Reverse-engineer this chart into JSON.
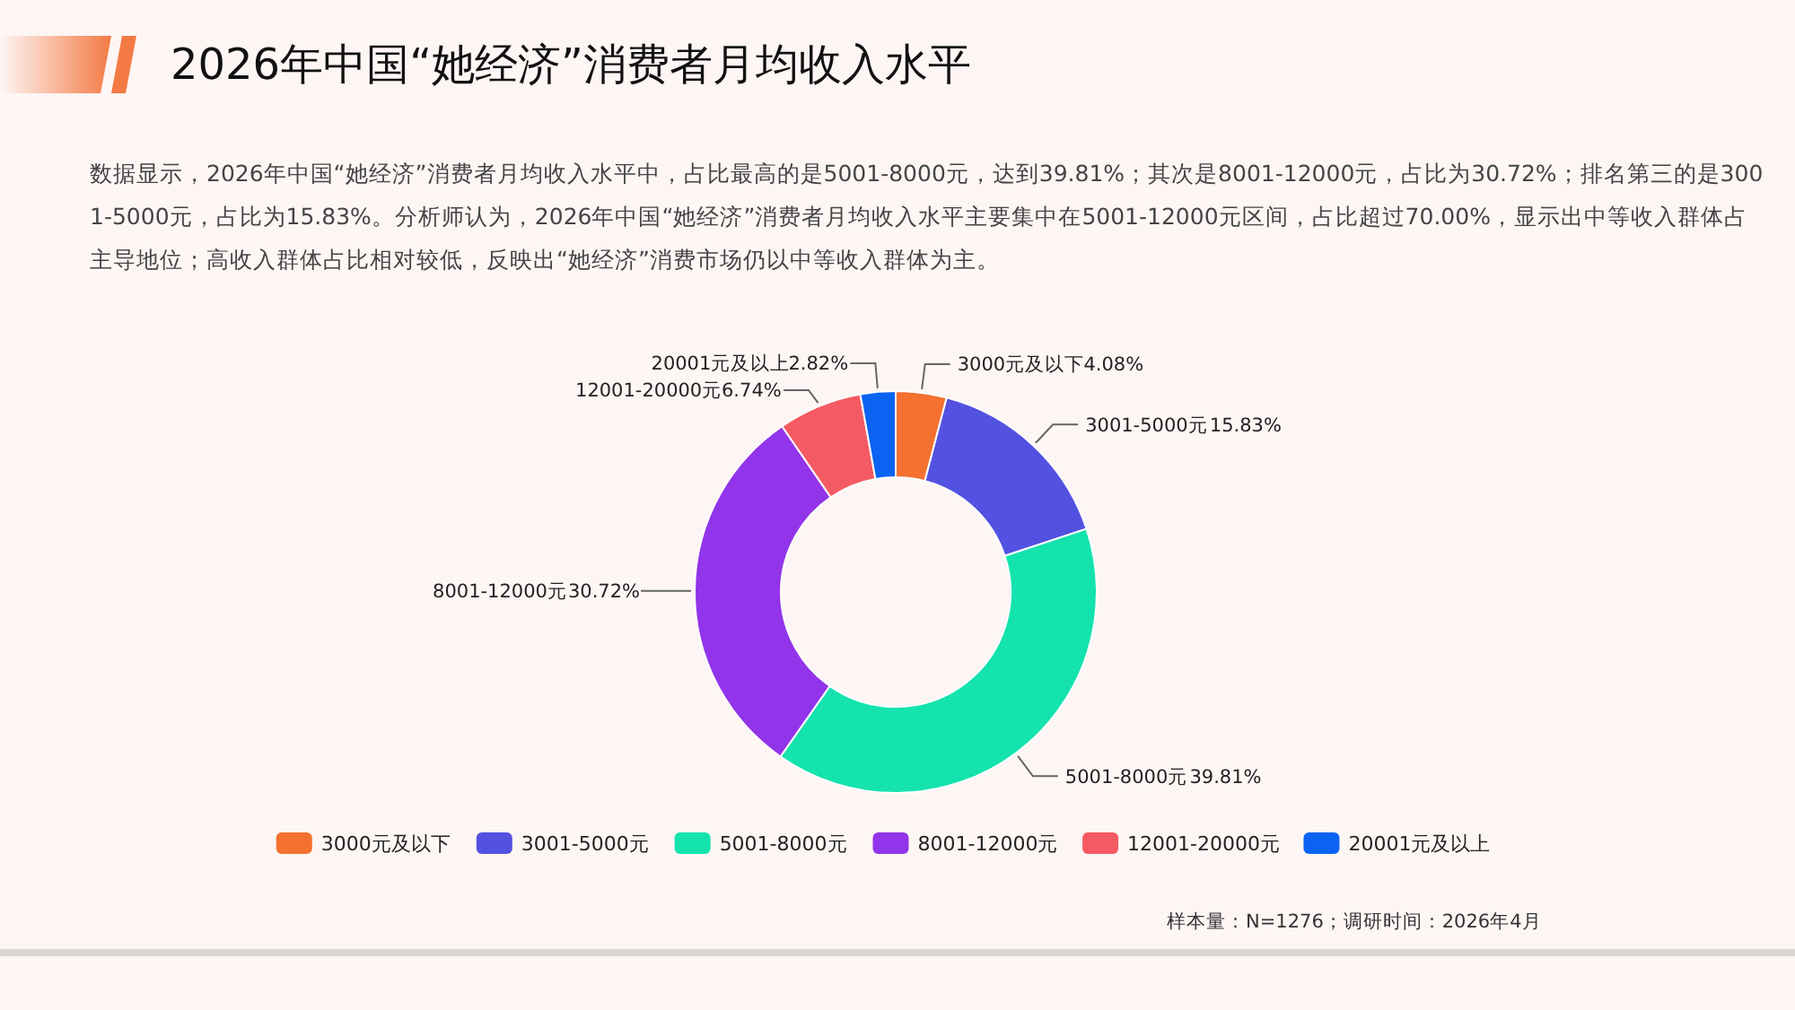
{
  "chart_data": {
    "type": "donut",
    "title": "2026年中国“她经济”消费者月均收入水平",
    "subtitle": "数据显示，2026年中国“她经济”消费者月均收入水平中，占比最高的是5001-8000元，达到39.81%；其次是8001-12000元，占比为30.72%；排名第三的是3001-5000元，占比为15.83%。分析师认为，2026年中国“她经济”消费者月均收入水平主要集中在5001-12000元区间，占比超过70.00%，显示出中等收入群体占主导地位；高收入群体占比相对较低，反映出“她经济”消费市场仍以中等收入群体为主。",
    "categories": [
      "3000元及以下",
      "3001-5000元",
      "5001-8000元",
      "8001-12000元",
      "12001-20000元",
      "20001元及以上"
    ],
    "values": [
      4.08,
      15.83,
      39.81,
      30.72,
      6.74,
      2.82
    ],
    "colors": [
      "#f4712f",
      "#5351e0",
      "#14e3ae",
      "#9234ea",
      "#f45a63",
      "#0b63f2"
    ],
    "value_labels": [
      "4.08%",
      "15.83%",
      "39.81%",
      "30.72%",
      "6.74%",
      "2.82%"
    ],
    "legend": "bottom",
    "annotations": [
      "样本量：N=1276；调研时间：2026年4月"
    ]
  }
}
